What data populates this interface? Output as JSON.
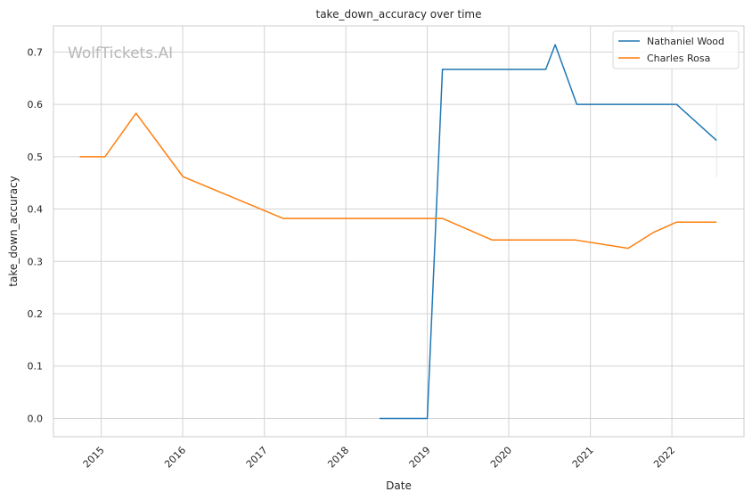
{
  "chart_data": {
    "type": "line",
    "title": "take_down_accuracy over time",
    "xlabel": "Date",
    "ylabel": "take_down_accuracy",
    "watermark": "WolfTickets.AI",
    "xlim": [
      "2014-06-01",
      "2022-11-20"
    ],
    "ylim": [
      -0.035,
      0.75
    ],
    "x_ticks": [
      "2015",
      "2016",
      "2017",
      "2018",
      "2019",
      "2020",
      "2021",
      "2022"
    ],
    "y_ticks": [
      "0.0",
      "0.1",
      "0.2",
      "0.3",
      "0.4",
      "0.5",
      "0.6",
      "0.7"
    ],
    "grid": true,
    "legend_position": "top-right",
    "series": [
      {
        "name": "Nathaniel Wood",
        "color": "#1f77b4",
        "points": [
          {
            "x": "2018-06-01",
            "y": 0.0
          },
          {
            "x": "2019-01-01",
            "y": 0.0
          },
          {
            "x": "2019-03-10",
            "y": 0.667
          },
          {
            "x": "2020-06-15",
            "y": 0.667
          },
          {
            "x": "2020-07-27",
            "y": 0.714
          },
          {
            "x": "2020-11-01",
            "y": 0.6
          },
          {
            "x": "2022-01-22",
            "y": 0.6
          },
          {
            "x": "2022-07-20",
            "y": 0.531
          }
        ]
      },
      {
        "name": "Charles Rosa",
        "color": "#ff7f0e",
        "points": [
          {
            "x": "2014-09-27",
            "y": 0.5
          },
          {
            "x": "2015-01-18",
            "y": 0.5
          },
          {
            "x": "2015-06-06",
            "y": 0.583
          },
          {
            "x": "2016-01-02",
            "y": 0.462
          },
          {
            "x": "2017-03-26",
            "y": 0.382
          },
          {
            "x": "2019-03-10",
            "y": 0.382
          },
          {
            "x": "2019-10-18",
            "y": 0.341
          },
          {
            "x": "2020-10-24",
            "y": 0.341
          },
          {
            "x": "2021-06-19",
            "y": 0.325
          },
          {
            "x": "2021-10-09",
            "y": 0.355
          },
          {
            "x": "2022-01-22",
            "y": 0.375
          },
          {
            "x": "2022-07-20",
            "y": 0.375
          }
        ]
      }
    ]
  }
}
